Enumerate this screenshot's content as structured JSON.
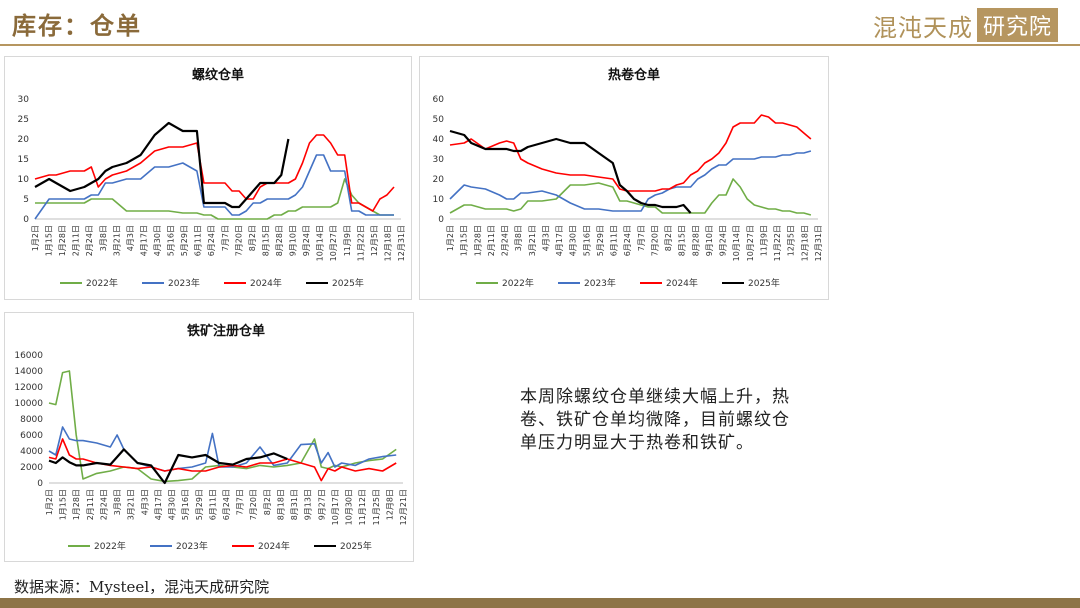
{
  "header": {
    "title": "库存：仓单",
    "brand": "混沌天成",
    "brand_box": "研究院"
  },
  "note": "本周除螺纹仓单继续大幅上升，热卷、铁矿仓单均微降，目前螺纹仓单压力明显大于热卷和铁矿。",
  "source": "数据来源：Mysteel，混沌天成研究院",
  "chart_data": [
    {
      "type": "line",
      "title": "螺纹仓单",
      "ylim": [
        0,
        30
      ],
      "yticks": [
        0,
        5,
        10,
        15,
        20,
        25,
        30
      ],
      "x_ticks": [
        "1月2日",
        "1月15日",
        "1月28日",
        "2月11日",
        "2月24日",
        "3月8日",
        "3月21日",
        "4月3日",
        "4月17日",
        "4月30日",
        "5月16日",
        "5月29日",
        "6月11日",
        "6月24日",
        "7月7日",
        "7月20日",
        "8月2日",
        "8月15日",
        "8月28日",
        "9月10日",
        "9月24日",
        "10月14日",
        "10月27日",
        "11月9日",
        "11月22日",
        "12月5日",
        "12月18日",
        "12月31日"
      ],
      "legend_position": "bottom",
      "series": [
        {
          "name": "2022年",
          "color": "#70ad47",
          "x": [
            1,
            3,
            4,
            6,
            8,
            9,
            10,
            11,
            12,
            14,
            16,
            18,
            20,
            22,
            24,
            25,
            26,
            27,
            28,
            29,
            30,
            31,
            32,
            33,
            34,
            35,
            36,
            37,
            38,
            39,
            40,
            41,
            42,
            43,
            44,
            45,
            46,
            47,
            48,
            49,
            50,
            51,
            52
          ],
          "y": [
            4,
            4,
            4,
            4,
            4,
            5,
            5,
            5,
            5,
            2,
            2,
            2,
            2,
            1.5,
            1.5,
            1,
            1,
            0,
            0,
            0,
            0,
            0,
            0,
            0,
            0,
            1,
            1,
            2,
            2,
            3,
            3,
            3,
            3,
            3,
            4,
            10,
            6,
            4,
            3,
            2,
            1,
            1,
            1
          ]
        },
        {
          "name": "2023年",
          "color": "#4472c4",
          "x": [
            1,
            3,
            4,
            6,
            8,
            9,
            10,
            11,
            12,
            14,
            16,
            18,
            20,
            22,
            24,
            25,
            26,
            27,
            28,
            29,
            30,
            31,
            32,
            33,
            34,
            35,
            36,
            37,
            38,
            39,
            40,
            41,
            42,
            43,
            44,
            45,
            46,
            47,
            48,
            49,
            50,
            51,
            52
          ],
          "y": [
            0,
            5,
            5,
            5,
            5,
            6,
            6,
            9,
            9,
            10,
            10,
            13,
            13,
            14,
            12,
            3,
            3,
            3,
            3,
            1,
            1,
            2,
            4,
            4,
            5,
            5,
            5,
            5,
            6,
            8,
            12,
            16,
            16,
            12,
            12,
            12,
            2,
            2,
            1,
            1,
            1,
            1,
            1
          ]
        },
        {
          "name": "2024年",
          "color": "#ff0000",
          "x": [
            1,
            3,
            4,
            6,
            8,
            9,
            10,
            11,
            12,
            14,
            16,
            18,
            20,
            22,
            24,
            25,
            26,
            27,
            28,
            29,
            30,
            31,
            32,
            33,
            34,
            35,
            36,
            37,
            38,
            39,
            40,
            41,
            42,
            43,
            44,
            45,
            46,
            47,
            48,
            49,
            50,
            51,
            52
          ],
          "y": [
            10,
            11,
            11,
            12,
            12,
            13,
            8,
            10,
            11,
            12,
            14,
            17,
            18,
            18,
            19,
            9,
            9,
            9,
            9,
            7,
            7,
            5,
            5,
            8,
            9,
            9,
            9,
            9,
            10,
            14,
            19,
            21,
            21,
            19,
            16,
            16,
            4,
            4,
            3,
            2,
            5,
            6,
            8
          ]
        },
        {
          "name": "2025年",
          "color": "#000000",
          "x": [
            1,
            3,
            4,
            6,
            8,
            9,
            10,
            11,
            12,
            14,
            16,
            18,
            20,
            22,
            24,
            25,
            26,
            27,
            28,
            29,
            30,
            31,
            32,
            33,
            34,
            35,
            36,
            37
          ],
          "y": [
            8,
            10,
            9,
            7,
            8,
            9,
            10,
            12,
            13,
            14,
            16,
            21,
            24,
            22,
            22,
            4,
            4,
            4,
            4,
            3,
            3,
            5,
            7,
            9,
            9,
            9,
            11,
            20
          ]
        }
      ]
    },
    {
      "type": "line",
      "title": "热卷仓单",
      "ylim": [
        0,
        60
      ],
      "yticks": [
        0,
        10,
        20,
        30,
        40,
        50,
        60
      ],
      "x_ticks": [
        "1月2日",
        "1月15日",
        "1月28日",
        "2月11日",
        "2月24日",
        "3月8日",
        "3月21日",
        "4月3日",
        "4月17日",
        "4月30日",
        "5月16日",
        "5月29日",
        "6月11日",
        "6月24日",
        "7月7日",
        "7月20日",
        "8月2日",
        "8月15日",
        "8月28日",
        "9月10日",
        "9月24日",
        "10月14日",
        "10月27日",
        "11月9日",
        "11月22日",
        "12月5日",
        "12月18日",
        "12月31日"
      ],
      "legend_position": "bottom",
      "series": [
        {
          "name": "2022年",
          "color": "#70ad47",
          "x": [
            1,
            3,
            4,
            6,
            8,
            9,
            10,
            11,
            12,
            14,
            16,
            18,
            20,
            22,
            24,
            25,
            26,
            27,
            28,
            29,
            30,
            31,
            32,
            33,
            34,
            35,
            36,
            37,
            38,
            39,
            40,
            41,
            42,
            43,
            44,
            45,
            46,
            47,
            48,
            49,
            50,
            51,
            52
          ],
          "y": [
            3,
            7,
            7,
            5,
            5,
            5,
            4,
            5,
            9,
            9,
            10,
            17,
            17,
            18,
            16,
            9,
            9,
            8,
            7,
            6,
            6,
            3,
            3,
            3,
            3,
            3,
            3,
            3,
            8,
            12,
            12,
            20,
            16,
            10,
            7,
            6,
            5,
            5,
            4,
            4,
            3,
            3,
            2
          ]
        },
        {
          "name": "2023年",
          "color": "#4472c4",
          "x": [
            1,
            3,
            4,
            6,
            8,
            9,
            10,
            11,
            12,
            14,
            16,
            18,
            20,
            22,
            24,
            25,
            26,
            27,
            28,
            29,
            30,
            31,
            32,
            33,
            34,
            35,
            36,
            37,
            38,
            39,
            40,
            41,
            42,
            43,
            44,
            45,
            46,
            47,
            48,
            49,
            50,
            51,
            52
          ],
          "y": [
            10,
            17,
            16,
            15,
            12,
            10,
            10,
            13,
            13,
            14,
            12,
            8,
            5,
            5,
            4,
            4,
            4,
            4,
            4,
            10,
            12,
            13,
            15,
            16,
            16,
            16,
            20,
            22,
            25,
            27,
            27,
            30,
            30,
            30,
            30,
            31,
            31,
            31,
            32,
            32,
            33,
            33,
            34
          ]
        },
        {
          "name": "2024年",
          "color": "#ff0000",
          "x": [
            1,
            3,
            4,
            6,
            8,
            9,
            10,
            11,
            12,
            14,
            16,
            18,
            20,
            22,
            24,
            25,
            26,
            27,
            28,
            29,
            30,
            31,
            32,
            33,
            34,
            35,
            36,
            37,
            38,
            39,
            40,
            41,
            42,
            43,
            44,
            45,
            46,
            47,
            48,
            49,
            50,
            51,
            52
          ],
          "y": [
            37,
            38,
            40,
            35,
            38,
            39,
            38,
            30,
            28,
            25,
            23,
            22,
            22,
            21,
            20,
            15,
            14,
            14,
            14,
            14,
            14,
            15,
            15,
            17,
            18,
            22,
            24,
            28,
            30,
            33,
            38,
            46,
            48,
            48,
            48,
            52,
            51,
            48,
            48,
            47,
            46,
            43,
            40
          ]
        },
        {
          "name": "2025年",
          "color": "#000000",
          "x": [
            1,
            3,
            4,
            6,
            8,
            9,
            10,
            11,
            12,
            14,
            16,
            18,
            20,
            22,
            24,
            25,
            26,
            27,
            28,
            29,
            30,
            31,
            32,
            33,
            34,
            35
          ],
          "y": [
            44,
            42,
            38,
            35,
            35,
            35,
            34,
            34,
            36,
            38,
            40,
            38,
            38,
            33,
            28,
            17,
            14,
            10,
            8,
            7,
            7,
            6,
            6,
            6,
            7,
            3
          ]
        }
      ]
    },
    {
      "type": "line",
      "title": "铁矿注册仓单",
      "ylim": [
        0,
        16000
      ],
      "yticks": [
        0,
        2000,
        4000,
        6000,
        8000,
        10000,
        12000,
        14000,
        16000
      ],
      "x_ticks": [
        "1月2日",
        "1月15日",
        "1月28日",
        "2月11日",
        "2月24日",
        "3月8日",
        "3月21日",
        "4月3日",
        "4月17日",
        "4月30日",
        "5月16日",
        "5月29日",
        "6月11日",
        "6月24日",
        "7月7日",
        "7月20日",
        "8月2日",
        "8月18日",
        "8月31日",
        "9月13日",
        "9月27日",
        "10月17日",
        "10月30日",
        "11月12日",
        "11月25日",
        "12月8日",
        "12月21日"
      ],
      "legend_position": "bottom",
      "series": [
        {
          "name": "2022年",
          "color": "#70ad47",
          "x": [
            1,
            2,
            3,
            4,
            5,
            6,
            8,
            10,
            12,
            14,
            16,
            18,
            20,
            22,
            24,
            26,
            28,
            30,
            32,
            34,
            36,
            38,
            40,
            41,
            42,
            43,
            44,
            46,
            48,
            50,
            52
          ],
          "y": [
            10000,
            9800,
            13800,
            14000,
            6000,
            500,
            1200,
            1500,
            2000,
            1800,
            500,
            200,
            300,
            500,
            2000,
            2200,
            2000,
            1800,
            2200,
            2000,
            2200,
            2500,
            5500,
            2000,
            1800,
            2200,
            2000,
            2500,
            2800,
            3000,
            4200
          ]
        },
        {
          "name": "2023年",
          "color": "#4472c4",
          "x": [
            1,
            2,
            3,
            4,
            5,
            6,
            8,
            10,
            11,
            12,
            14,
            16,
            18,
            20,
            22,
            24,
            25,
            26,
            28,
            30,
            32,
            34,
            36,
            38,
            40,
            41,
            42,
            43,
            44,
            46,
            48,
            50,
            52
          ],
          "y": [
            4000,
            3500,
            7000,
            5500,
            5300,
            5300,
            5000,
            4500,
            6000,
            4200,
            2500,
            2000,
            1500,
            1800,
            2000,
            2500,
            6200,
            2000,
            2000,
            2500,
            4500,
            2200,
            2500,
            4800,
            4900,
            2500,
            3800,
            2000,
            2500,
            2200,
            3000,
            3300,
            3500
          ]
        },
        {
          "name": "2024年",
          "color": "#ff0000",
          "x": [
            1,
            2,
            3,
            4,
            5,
            6,
            8,
            10,
            12,
            14,
            16,
            18,
            20,
            22,
            24,
            26,
            28,
            30,
            32,
            34,
            36,
            38,
            40,
            41,
            42,
            43,
            44,
            46,
            48,
            50,
            52
          ],
          "y": [
            3200,
            3000,
            5500,
            3500,
            3000,
            3000,
            2500,
            2200,
            2000,
            1800,
            2000,
            1500,
            1800,
            1500,
            1500,
            2000,
            2200,
            2000,
            2500,
            2500,
            3000,
            2500,
            2000,
            300,
            1800,
            1500,
            2000,
            1500,
            1800,
            1500,
            2500
          ]
        },
        {
          "name": "2025年",
          "color": "#000000",
          "x": [
            1,
            2,
            3,
            4,
            5,
            6,
            8,
            10,
            12,
            14,
            16,
            18,
            20,
            22,
            24,
            26,
            28,
            30,
            32,
            34,
            36
          ],
          "y": [
            2800,
            2500,
            3200,
            2600,
            2200,
            2200,
            2500,
            2300,
            4200,
            2500,
            2200,
            0,
            3500,
            3200,
            3500,
            2500,
            2300,
            3000,
            3200,
            3700,
            3000
          ]
        }
      ]
    }
  ]
}
